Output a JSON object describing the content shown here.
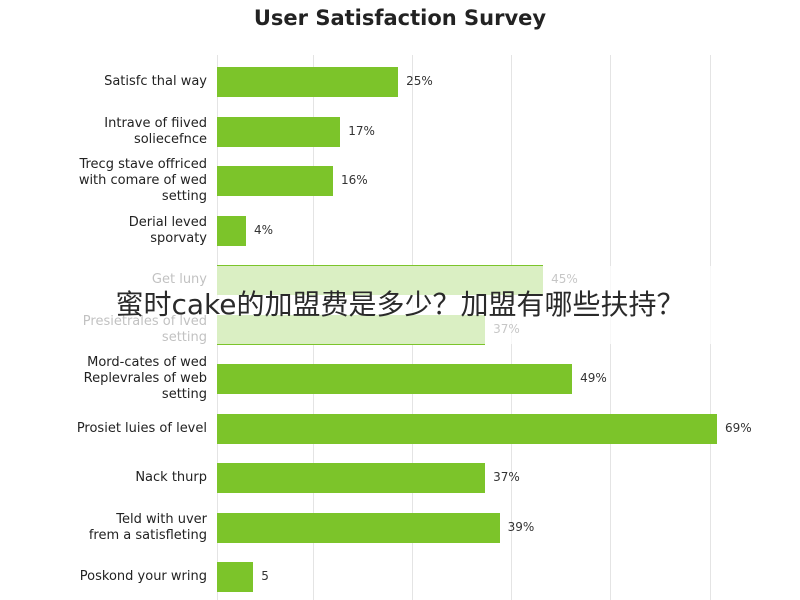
{
  "chart_data": {
    "type": "bar",
    "orientation": "horizontal",
    "title": "User Satisfaction Survey",
    "categories": [
      "Satisfc thal way",
      "Intrave of fiived\nsoliecefnce",
      "Trecg stave offriced\nwith comare of wed\nsetting",
      "Derial leved\nsporvaty",
      "Get luny",
      "Presietrales of lved\nsetting",
      "Mord-cates of wed\nReplevrales of web\nsetting",
      "Prosiet luies of level",
      "Nack thurp",
      "Teld with uver\nfrem a satisfleting",
      "Poskond your wring"
    ],
    "values": [
      25,
      17,
      16,
      4,
      45,
      37,
      49,
      69,
      37,
      39,
      5
    ],
    "value_labels": [
      "25%",
      "17%",
      "16%",
      "4%",
      "45%",
      "37%",
      "49%",
      "69%",
      "37%",
      "39%",
      "5"
    ],
    "color": "#7cc42a"
  },
  "overlay_text": "蜜时cake的加盟费是多少？加盟有哪些扶持？"
}
